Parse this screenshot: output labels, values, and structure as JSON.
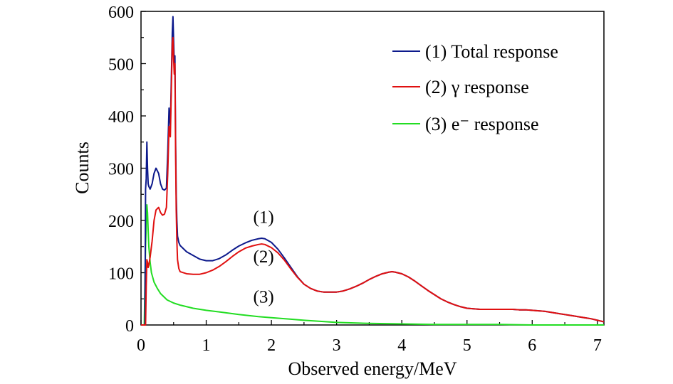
{
  "chart_data": {
    "type": "line",
    "title": "",
    "xlabel": "Observed energy/MeV",
    "ylabel": "Counts",
    "xlim": [
      0,
      7.1
    ],
    "ylim": [
      0,
      600
    ],
    "xticks": [
      0,
      1,
      2,
      3,
      4,
      5,
      6,
      7
    ],
    "yticks": [
      0,
      100,
      200,
      300,
      400,
      500,
      600
    ],
    "xtick_labels": [
      "0",
      "1",
      "2",
      "3",
      "4",
      "5",
      "6",
      "7"
    ],
    "ytick_labels": [
      "0",
      "100",
      "200",
      "300",
      "400",
      "500",
      "600"
    ],
    "grid": false,
    "legend_position": "top-right",
    "series": [
      {
        "name": "(1) Total response",
        "color": "#0d1a8c",
        "x": [
          0.0,
          0.06,
          0.07,
          0.08,
          0.09,
          0.1,
          0.11,
          0.12,
          0.14,
          0.17,
          0.2,
          0.23,
          0.27,
          0.3,
          0.33,
          0.36,
          0.39,
          0.41,
          0.43,
          0.45,
          0.47,
          0.48,
          0.49,
          0.5,
          0.51,
          0.52,
          0.53,
          0.54,
          0.55,
          0.56,
          0.58,
          0.6,
          0.7,
          0.8,
          0.9,
          1.0,
          1.1,
          1.2,
          1.3,
          1.4,
          1.5,
          1.6,
          1.7,
          1.8,
          1.85,
          1.9,
          2.0,
          2.1,
          2.2,
          2.3,
          2.4,
          2.5,
          2.6,
          2.7,
          2.8,
          2.9,
          3.0,
          3.1,
          3.2,
          3.3,
          3.4,
          3.5,
          3.6,
          3.7,
          3.8,
          3.85,
          3.9,
          4.0,
          4.1,
          4.2,
          4.3,
          4.4,
          4.5,
          4.6,
          4.7,
          4.8,
          4.9,
          5.0,
          5.1,
          5.2,
          5.3,
          5.4,
          5.5,
          5.6,
          5.7,
          5.8,
          5.9,
          6.0,
          6.1,
          6.2,
          6.3,
          6.4,
          6.5,
          6.6,
          6.7,
          6.8,
          6.9,
          7.0,
          7.1
        ],
        "y": [
          0,
          0,
          260,
          280,
          350,
          300,
          270,
          265,
          260,
          270,
          290,
          300,
          290,
          270,
          260,
          258,
          262,
          330,
          415,
          380,
          500,
          560,
          590,
          545,
          500,
          515,
          360,
          250,
          200,
          170,
          158,
          152,
          140,
          133,
          126,
          123,
          123,
          127,
          134,
          143,
          151,
          157,
          162,
          165,
          166,
          165,
          158,
          145,
          128,
          110,
          92,
          78,
          70,
          65,
          63,
          63,
          63,
          65,
          69,
          74,
          80,
          87,
          93,
          98,
          101,
          102,
          101,
          98,
          92,
          84,
          75,
          66,
          58,
          50,
          44,
          39,
          35,
          32,
          31,
          30,
          30,
          30,
          30,
          30,
          30,
          29,
          29,
          28,
          27,
          26,
          24,
          22,
          20,
          18,
          16,
          14,
          12,
          9,
          6
        ]
      },
      {
        "name": "(2) γ response",
        "color": "#e01010",
        "x": [
          0.0,
          0.07,
          0.08,
          0.09,
          0.1,
          0.11,
          0.12,
          0.14,
          0.17,
          0.2,
          0.23,
          0.27,
          0.3,
          0.33,
          0.36,
          0.39,
          0.41,
          0.43,
          0.45,
          0.47,
          0.48,
          0.49,
          0.5,
          0.51,
          0.52,
          0.53,
          0.54,
          0.55,
          0.56,
          0.58,
          0.6,
          0.7,
          0.8,
          0.9,
          1.0,
          1.1,
          1.2,
          1.3,
          1.4,
          1.5,
          1.6,
          1.7,
          1.8,
          1.85,
          1.9,
          2.0,
          2.1,
          2.2,
          2.3,
          2.4,
          2.5,
          2.6,
          2.7,
          2.8,
          2.9,
          3.0,
          3.1,
          3.2,
          3.3,
          3.4,
          3.5,
          3.6,
          3.7,
          3.8,
          3.85,
          3.9,
          4.0,
          4.1,
          4.2,
          4.3,
          4.4,
          4.5,
          4.6,
          4.7,
          4.8,
          4.9,
          5.0,
          5.1,
          5.2,
          5.3,
          5.4,
          5.5,
          5.6,
          5.7,
          5.8,
          5.9,
          6.0,
          6.1,
          6.2,
          6.3,
          6.4,
          6.5,
          6.6,
          6.7,
          6.8,
          6.9,
          7.0,
          7.1
        ],
        "y": [
          0,
          0,
          75,
          125,
          120,
          110,
          115,
          130,
          160,
          200,
          220,
          225,
          215,
          210,
          212,
          225,
          290,
          380,
          360,
          480,
          540,
          550,
          510,
          480,
          500,
          340,
          220,
          160,
          125,
          108,
          102,
          98,
          97,
          97,
          100,
          105,
          112,
          121,
          131,
          140,
          147,
          151,
          154,
          155,
          154,
          148,
          138,
          124,
          107,
          91,
          78,
          70,
          65,
          63,
          63,
          63,
          65,
          69,
          74,
          80,
          87,
          93,
          98,
          101,
          102,
          101,
          98,
          92,
          84,
          75,
          66,
          58,
          50,
          44,
          39,
          35,
          32,
          31,
          30,
          30,
          30,
          30,
          30,
          30,
          29,
          29,
          28,
          27,
          26,
          24,
          22,
          20,
          18,
          16,
          14,
          12,
          9,
          6
        ]
      },
      {
        "name": "(3) e⁻ response",
        "color": "#22dd22",
        "x": [
          0.0,
          0.05,
          0.07,
          0.09,
          0.1,
          0.11,
          0.12,
          0.14,
          0.16,
          0.2,
          0.25,
          0.3,
          0.4,
          0.5,
          0.6,
          0.7,
          0.8,
          1.0,
          1.2,
          1.5,
          1.8,
          2.0,
          2.3,
          2.5,
          3.0,
          3.5,
          4.0,
          4.5,
          5.0,
          5.5,
          6.0,
          6.5,
          7.0,
          7.1
        ],
        "y": [
          0,
          0,
          150,
          230,
          215,
          180,
          150,
          120,
          100,
          82,
          70,
          60,
          48,
          42,
          38,
          35,
          32,
          28,
          25,
          20,
          16,
          14,
          11,
          9,
          5,
          3,
          2,
          1,
          1,
          1,
          0,
          0,
          0,
          0
        ]
      }
    ],
    "annotations": [
      {
        "text": "(1)",
        "x": 1.88,
        "y": 195
      },
      {
        "text": "(2)",
        "x": 1.88,
        "y": 120
      },
      {
        "text": "(3)",
        "x": 1.88,
        "y": 43
      }
    ]
  }
}
